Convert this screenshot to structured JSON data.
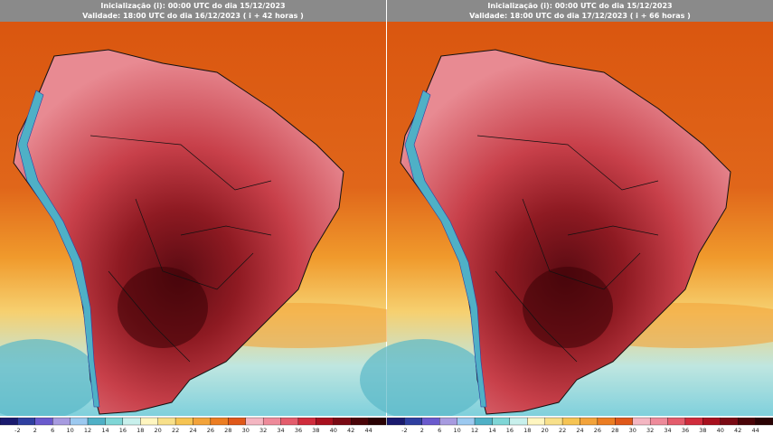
{
  "panels": [
    {
      "init": "Inicialização (i): 00:00 UTC do dia 15/12/2023",
      "valid": "Validade: 18:00 UTC do dia 16/12/2023 ( i + 42 horas )"
    },
    {
      "init": "Inicialização (i): 00:00 UTC do dia 15/12/2023",
      "valid": "Validade: 18:00 UTC do dia 17/12/2023 ( i + 66 horas )"
    }
  ],
  "colorbar": {
    "labels": [
      -2,
      2,
      6,
      10,
      12,
      14,
      16,
      18,
      20,
      22,
      24,
      26,
      28,
      30,
      32,
      34,
      36,
      38,
      40,
      42,
      44
    ]
  }
}
